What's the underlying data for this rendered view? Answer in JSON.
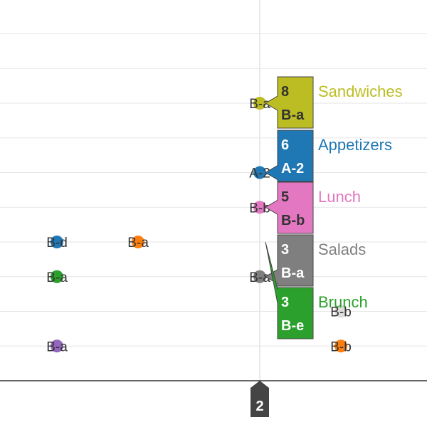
{
  "chart_data": {
    "type": "scatter",
    "title": "",
    "xlabel": "",
    "ylabel": "",
    "grid": true,
    "crosshair_x_label": "2",
    "crosshair_x": 2,
    "points": [
      {
        "x": 2.0,
        "y": 8.0,
        "label": "B-a",
        "color": "#bcbd22"
      },
      {
        "x": 2.0,
        "y": 6.0,
        "label": "A-2",
        "color": "#1f77b4"
      },
      {
        "x": 2.0,
        "y": 5.0,
        "label": "B-b",
        "color": "#e377c2"
      },
      {
        "x": 2.0,
        "y": 3.0,
        "label": "B-a",
        "color": "#7f7f7f"
      },
      {
        "x": 0.5,
        "y": 4.0,
        "label": "B-d",
        "color": "#1f77b4"
      },
      {
        "x": 0.5,
        "y": 3.0,
        "label": "B-a",
        "color": "#2ca02c"
      },
      {
        "x": 0.5,
        "y": 1.0,
        "label": "B-a",
        "color": "#9467bd"
      },
      {
        "x": 1.1,
        "y": 4.0,
        "label": "B-a",
        "color": "#ff7f0e"
      },
      {
        "x": 2.6,
        "y": 1.0,
        "label": "B-b",
        "color": "#ff7f0e"
      },
      {
        "x": 2.6,
        "y": 2.0,
        "label": "B-b",
        "color": "#dddddd"
      }
    ],
    "tooltips": [
      {
        "series": "Sandwiches",
        "value": "8",
        "label": "B-a",
        "color": "#bcbd22",
        "text_color": "#333333"
      },
      {
        "series": "Appetizers",
        "value": "6",
        "label": "A-2",
        "color": "#1f77b4",
        "text_color": "#ffffff"
      },
      {
        "series": "Lunch",
        "value": "5",
        "label": "B-b",
        "color": "#e377c2",
        "text_color": "#333333"
      },
      {
        "series": "Salads",
        "value": "3",
        "label": "B-a",
        "color": "#7f7f7f",
        "text_color": "#ffffff"
      },
      {
        "series": "Brunch",
        "value": "3",
        "label": "B-e",
        "color": "#2ca02c",
        "text_color": "#ffffff"
      }
    ]
  }
}
